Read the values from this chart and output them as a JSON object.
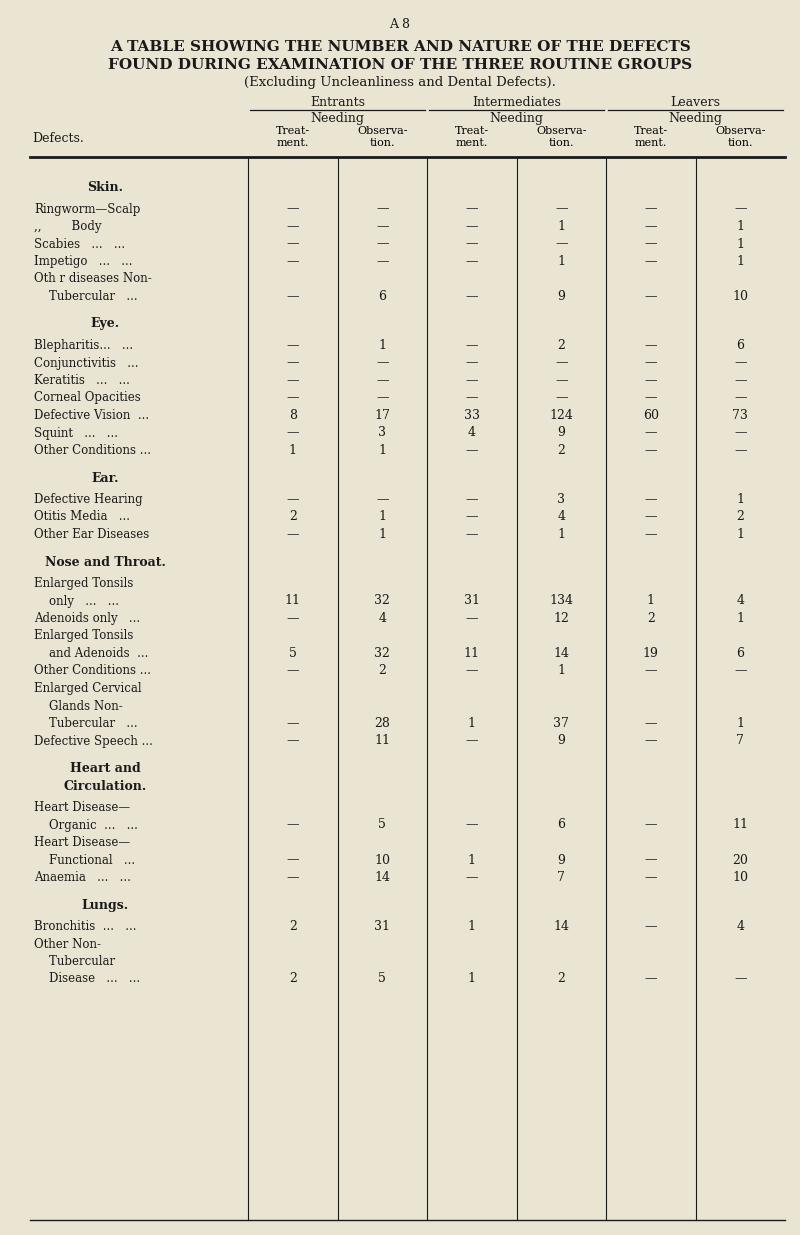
{
  "page_label": "A 8",
  "title_line1": "A TABLE SHOWING THE NUMBER AND NATURE OF THE DEFECTS",
  "title_line2": "FOUND DURING EXAMINATION OF THE THREE ROUTINE GROUPS",
  "title_line3": "(Excluding Uncleanliness and Dental Defects).",
  "bg_color": "#e9e5d2",
  "sections": [
    {
      "header": "Skin.",
      "rows": [
        {
          "label": "Ringworm—Scalp",
          "v": [
            "",
            "",
            "",
            "",
            "",
            ""
          ]
        },
        {
          "label": ",,        Body",
          "v": [
            "",
            "",
            "",
            "1",
            "",
            "1"
          ]
        },
        {
          "label": "Scabies   ...   ...",
          "v": [
            "",
            "",
            "",
            "",
            "",
            "1"
          ]
        },
        {
          "label": "Impetigo   ...   ...",
          "v": [
            "",
            "",
            "",
            "1",
            "",
            "1"
          ]
        },
        {
          "label": "Oth r diseases Non-",
          "v": [
            "",
            "",
            "",
            "",
            "",
            ""
          ],
          "extra_label": "    Tubercular   ...",
          "extra_v": [
            "",
            "6",
            "",
            "9",
            "",
            "10"
          ],
          "is_two_line": true
        }
      ]
    },
    {
      "header": "Eye.",
      "rows": [
        {
          "label": "Blepharitis...   ...",
          "v": [
            "",
            "1",
            "",
            "2",
            "",
            "6"
          ]
        },
        {
          "label": "Conjunctivitis   ...",
          "v": [
            "",
            "",
            "",
            "",
            "",
            ""
          ]
        },
        {
          "label": "Keratitis   ...   ...",
          "v": [
            "",
            "",
            "",
            "",
            "",
            ""
          ]
        },
        {
          "label": "Corneal Opacities",
          "v": [
            "",
            "",
            "",
            "",
            "",
            ""
          ]
        },
        {
          "label": "Defective Vision  ...",
          "v": [
            "8",
            "17",
            "33",
            "124",
            "60",
            "73"
          ]
        },
        {
          "label": "Squint   ...   ...",
          "v": [
            "",
            "3",
            "4",
            "9",
            "",
            ""
          ]
        },
        {
          "label": "Other Conditions ...",
          "v": [
            "1",
            "1",
            "",
            "2",
            "",
            ""
          ]
        }
      ]
    },
    {
      "header": "Ear.",
      "rows": [
        {
          "label": "Defective Hearing",
          "v": [
            "",
            "",
            "",
            "3",
            "",
            "1"
          ]
        },
        {
          "label": "Otitis Media   ...",
          "v": [
            "2",
            "1",
            "",
            "4",
            "",
            "2"
          ]
        },
        {
          "label": "Other Ear Diseases",
          "v": [
            "",
            "1",
            "",
            "1",
            "",
            "1"
          ]
        }
      ]
    },
    {
      "header": "Nose and Throat.",
      "rows": [
        {
          "label": "Enlarged Tonsils",
          "v": [
            "",
            "",
            "",
            "",
            "",
            ""
          ],
          "extra_label": "    only   ...   ...",
          "extra_v": [
            "11",
            "32",
            "31",
            "134",
            "1",
            "4"
          ],
          "is_two_line": true
        },
        {
          "label": "Adenoids only   ...",
          "v": [
            "",
            "4",
            "",
            "12",
            "2",
            "1"
          ]
        },
        {
          "label": "Enlarged Tonsils",
          "v": [
            "",
            "",
            "",
            "",
            "",
            ""
          ],
          "extra_label": "    and Adenoids  ...",
          "extra_v": [
            "5",
            "32",
            "11",
            "14",
            "19",
            "6"
          ],
          "is_two_line": true
        },
        {
          "label": "Other Conditions ...",
          "v": [
            "",
            "2",
            "",
            "1",
            "",
            ""
          ]
        },
        {
          "label": "Enlarged Cervical",
          "v": [
            "",
            "",
            "",
            "",
            "",
            ""
          ],
          "extra_label": "    Glands Non-",
          "extra_v": [
            "",
            "",
            "",
            "",
            "",
            ""
          ],
          "extra2_label": "    Tubercular   ...",
          "extra2_v": [
            "",
            "28",
            "1",
            "37",
            "",
            "1"
          ],
          "is_three_line": true
        },
        {
          "label": "Defective Speech ...",
          "v": [
            "",
            "11",
            "",
            "9",
            "",
            "7"
          ]
        }
      ]
    },
    {
      "header": "Heart and",
      "header2": "Circulation.",
      "rows": [
        {
          "label": "Heart Disease—",
          "v": [
            "",
            "",
            "",
            "",
            "",
            ""
          ],
          "extra_label": "    Organic  ...   ...",
          "extra_v": [
            "",
            "5",
            "",
            "6",
            "",
            "11"
          ],
          "is_two_line": true
        },
        {
          "label": "Heart Disease—",
          "v": [
            "",
            "",
            "",
            "",
            "",
            ""
          ],
          "extra_label": "    Functional   ...",
          "extra_v": [
            "",
            "10",
            "1",
            "9",
            "",
            "20"
          ],
          "is_two_line": true
        },
        {
          "label": "Anaemia   ...   ...",
          "v": [
            "",
            "14",
            "",
            "7",
            "",
            "10"
          ]
        }
      ]
    },
    {
      "header": "Lungs.",
      "rows": [
        {
          "label": "Bronchitis  ...   ...",
          "v": [
            "2",
            "31",
            "1",
            "14",
            "",
            "4"
          ]
        },
        {
          "label": "Other Non-",
          "v": [
            "",
            "",
            "",
            "",
            "",
            ""
          ],
          "extra_label": "    Tubercular",
          "extra_v": [
            "",
            "",
            "",
            "",
            "",
            ""
          ],
          "extra2_label": "    Disease   ...   ...",
          "extra2_v": [
            "2",
            "5",
            "1",
            "2",
            "",
            ""
          ],
          "is_three_line": true
        }
      ]
    }
  ]
}
